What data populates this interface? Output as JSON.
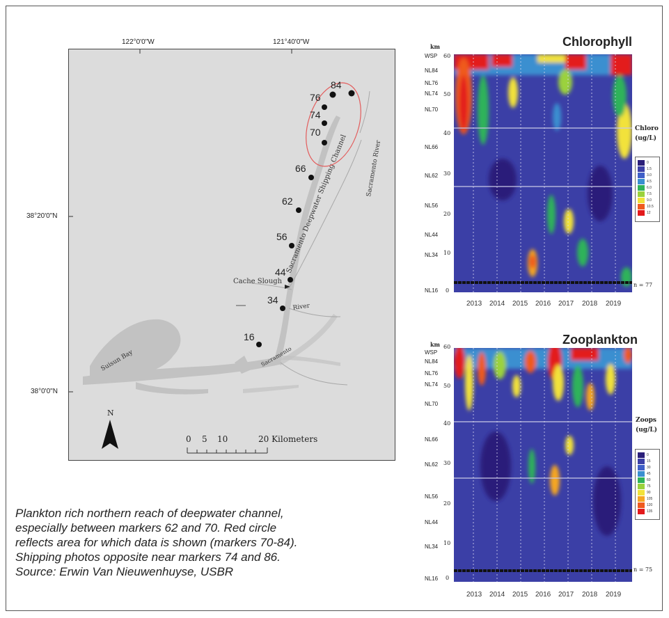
{
  "map": {
    "lon_labels": [
      "122°0'0\"W",
      "121°40'0\"W"
    ],
    "lat_labels": [
      "38°20'0\"N",
      "38°0'0\"N"
    ],
    "places": {
      "cache_slough": "Cache Slough",
      "river": "River",
      "suisun_bay": "Suisun Bay",
      "sacramento": "Sacramento",
      "channel": "Sacramento Deepwater Shipping Channel",
      "sacramento_river": "Sacramento River"
    },
    "markers": [
      "84",
      "76",
      "74",
      "70",
      "66",
      "62",
      "56",
      "44",
      "34",
      "16"
    ],
    "north": "N",
    "scale": {
      "zero": "0",
      "five": "5",
      "ten": "10",
      "twenty": "20 Kilometers"
    }
  },
  "caption": [
    "Plankton rich northern reach of deepwater channel,",
    "especially between markers 62 and 70. Red circle",
    "reflects area for which data is shown (markers 70-84).",
    "Shipping photos opposite near markers 74 and 86.",
    "Source: Erwin Van Nieuwenhuyse, USBR"
  ],
  "panels": [
    {
      "title": "Chlorophyll",
      "unit": "km",
      "y_ticks": [
        "60",
        "50",
        "40",
        "30",
        "20",
        "10",
        "0"
      ],
      "station_labels": [
        "WSP",
        "NL84",
        "NL76",
        "NL74",
        "NL70",
        "NL66",
        "NL62",
        "NL56",
        "NL44",
        "NL34",
        "NL16"
      ],
      "years": [
        "2013",
        "2014",
        "2015",
        "2016",
        "2017",
        "2018",
        "2019"
      ],
      "legend_title": [
        "Chloro",
        "(ug/L)"
      ],
      "legend_values": [
        "0",
        "1.5",
        "3.0",
        "4.5",
        "6.0",
        "7.5",
        "9.0",
        "10.5",
        "12"
      ],
      "n_label": "n = 77"
    },
    {
      "title": "Zooplankton",
      "unit": "km",
      "y_ticks": [
        "60",
        "50",
        "40",
        "30",
        "20",
        "10",
        "0"
      ],
      "station_labels": [
        "WSP",
        "NL84",
        "NL76",
        "NL74",
        "NL70",
        "NL66",
        "NL62",
        "NL56",
        "NL44",
        "NL34",
        "NL16"
      ],
      "years": [
        "2013",
        "2014",
        "2015",
        "2016",
        "2017",
        "2018",
        "2019"
      ],
      "legend_title": [
        "Zoops",
        "(ug/L)"
      ],
      "legend_values": [
        "0",
        "15",
        "30",
        "45",
        "60",
        "75",
        "90",
        "105",
        "120",
        "135"
      ],
      "n_label": "n = 75"
    }
  ],
  "colors": {
    "scale": [
      "#2b1f7a",
      "#3b3fa6",
      "#3f5fc8",
      "#3a8fd0",
      "#2fb35a",
      "#9bd23c",
      "#f2e23a",
      "#f5a623",
      "#ef5a1e",
      "#e31a1c"
    ]
  }
}
